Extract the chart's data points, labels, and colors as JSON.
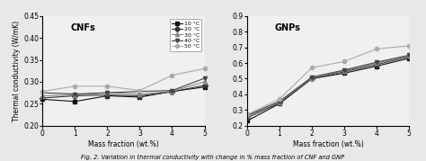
{
  "x": [
    0,
    1,
    2,
    3,
    4,
    5
  ],
  "cnf_title": "CNFs",
  "gnp_title": "GNPs",
  "ylabel": "Thermal conductivity (W/mK)",
  "xlabel": "Mass fraction (wt.%)",
  "caption": "Fig. 2. Variation in thermal conductivity with change in % mass fraction of CNF and GNP",
  "legend_labels": [
    "10 °C",
    "20 °C",
    "30 °C",
    "40 °C",
    "50 °C"
  ],
  "cnf_ylim": [
    0.2,
    0.45
  ],
  "gnp_ylim": [
    0.2,
    0.9
  ],
  "cnf_yticks": [
    0.2,
    0.25,
    0.3,
    0.35,
    0.4,
    0.45
  ],
  "gnp_yticks": [
    0.2,
    0.3,
    0.4,
    0.5,
    0.6,
    0.7,
    0.8,
    0.9
  ],
  "cnf_data": {
    "10C": [
      0.26,
      0.255,
      0.268,
      0.265,
      0.278,
      0.288
    ],
    "20C": [
      0.263,
      0.268,
      0.27,
      0.268,
      0.277,
      0.292
    ],
    "30C": [
      0.268,
      0.27,
      0.275,
      0.272,
      0.278,
      0.3
    ],
    "40C": [
      0.275,
      0.272,
      0.275,
      0.278,
      0.28,
      0.308
    ],
    "50C": [
      0.278,
      0.29,
      0.29,
      0.28,
      0.315,
      0.33
    ]
  },
  "gnp_data": {
    "10C": [
      0.23,
      0.34,
      0.5,
      0.535,
      0.58,
      0.63
    ],
    "20C": [
      0.25,
      0.345,
      0.5,
      0.545,
      0.59,
      0.64
    ],
    "30C": [
      0.26,
      0.35,
      0.505,
      0.55,
      0.6,
      0.645
    ],
    "40C": [
      0.265,
      0.355,
      0.51,
      0.555,
      0.605,
      0.65
    ],
    "50C": [
      0.27,
      0.37,
      0.57,
      0.61,
      0.69,
      0.71
    ]
  },
  "markers": [
    "s",
    "D",
    "^",
    "v",
    "o"
  ],
  "colors": [
    "#111111",
    "#333333",
    "#888888",
    "#444444",
    "#aaaaaa"
  ],
  "marker_sizes": [
    3,
    3,
    3,
    3,
    3
  ],
  "linewidths": [
    0.8,
    0.8,
    0.8,
    0.8,
    0.8
  ],
  "bg_color": "#f0f0f0"
}
